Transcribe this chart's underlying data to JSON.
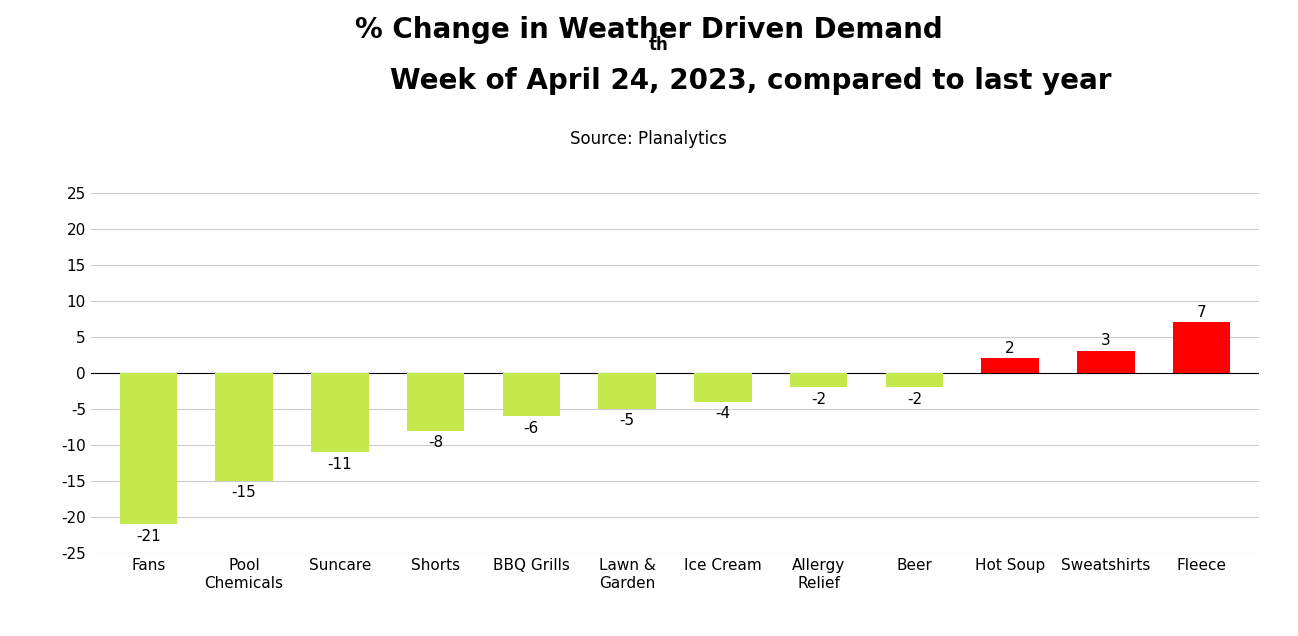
{
  "categories": [
    "Fans",
    "Pool\nChemicals",
    "Suncare",
    "Shorts",
    "BBQ Grills",
    "Lawn &\nGarden",
    "Ice Cream",
    "Allergy\nRelief",
    "Beer",
    "Hot Soup",
    "Sweatshirts",
    "Fleece"
  ],
  "values": [
    -21,
    -15,
    -11,
    -8,
    -6,
    -5,
    -4,
    -2,
    -2,
    2,
    3,
    7
  ],
  "bar_color_negative": "#c5e84a",
  "bar_color_positive": "#ff0000",
  "title_line1": "% Change in Weather Driven Demand",
  "title_line2_pre": "Week of April 24",
  "title_superscript": "th",
  "title_line2_post": ", 2023, compared to last year",
  "subtitle": "Source: Planalytics",
  "ylim": [
    -25,
    27
  ],
  "yticks": [
    -25,
    -20,
    -15,
    -10,
    -5,
    0,
    5,
    10,
    15,
    20,
    25
  ],
  "background_color": "#ffffff",
  "grid_color": "#cccccc",
  "label_fontsize": 11,
  "title_fontsize": 20,
  "subtitle_fontsize": 12,
  "bar_label_fontsize": 11
}
